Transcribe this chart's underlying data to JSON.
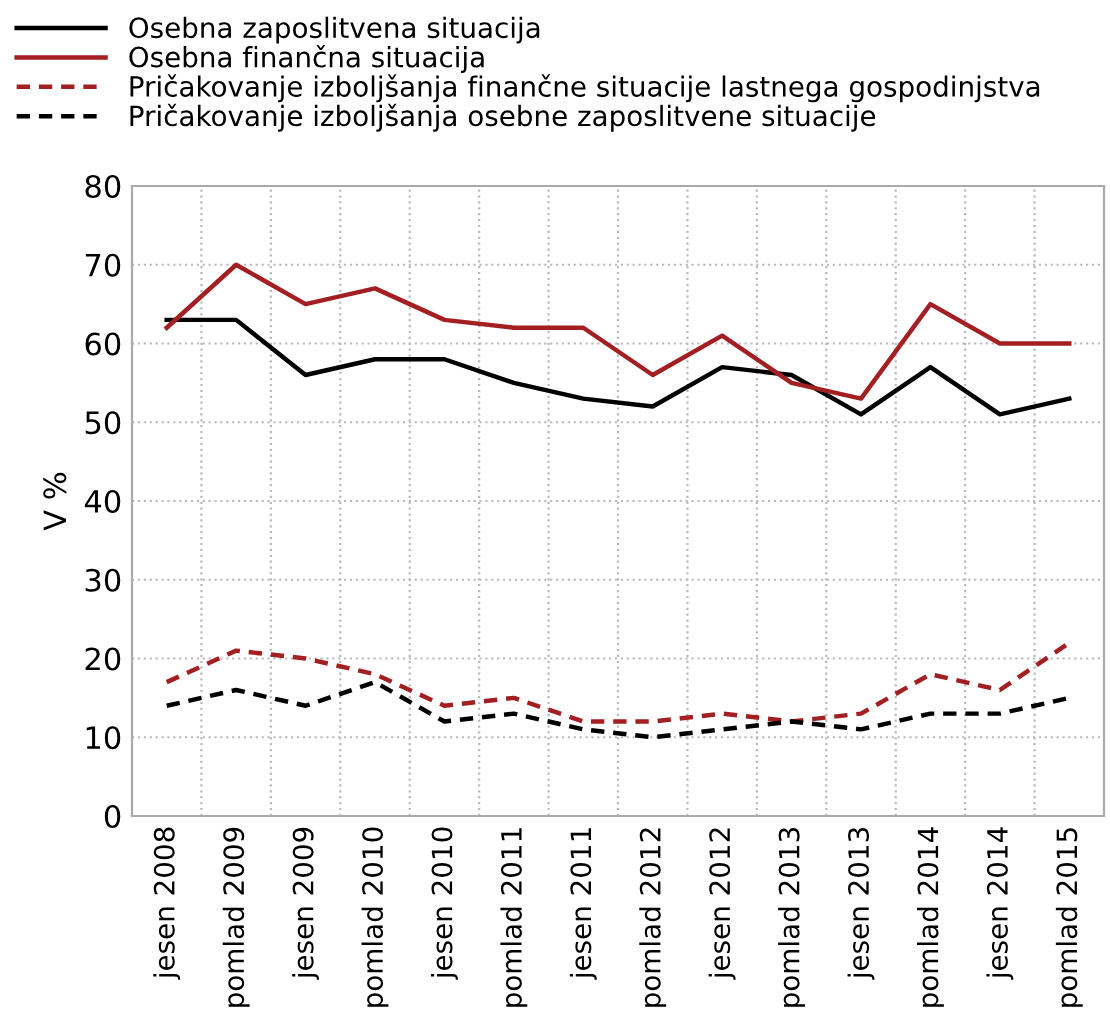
{
  "chart_data": {
    "type": "line",
    "ylabel": "V %",
    "categories": [
      "jesen 2008",
      "pomlad 2009",
      "jesen 2009",
      "pomlad 2010",
      "jesen 2010",
      "pomlad 2011",
      "jesen 2011",
      "pomlad 2012",
      "jesen 2012",
      "pomlad 2013",
      "jesen 2013",
      "pomlad 2014",
      "jesen 2014",
      "pomlad 2015"
    ],
    "series": [
      {
        "name": "Osebna zaposlitvena situacija",
        "color": "#000000",
        "line_style": "solid",
        "values": [
          63,
          63,
          56,
          58,
          58,
          55,
          53,
          52,
          57,
          56,
          51,
          57,
          51,
          53
        ]
      },
      {
        "name": "Osebna finančna situacija",
        "color": "#a31f22",
        "line_style": "solid",
        "values": [
          62,
          70,
          65,
          67,
          63,
          62,
          62,
          56,
          61,
          55,
          53,
          65,
          60,
          60
        ]
      },
      {
        "name": "Pričakovanje izboljšanja finančne situacije lastnega gospodinjstva",
        "color": "#a31f22",
        "line_style": "dashed",
        "values": [
          17,
          21,
          20,
          18,
          14,
          15,
          12,
          12,
          13,
          12,
          13,
          18,
          16,
          22
        ]
      },
      {
        "name": "Pričakovanje izboljšanja osebne zaposlitvene situacije",
        "color": "#000000",
        "line_style": "dashed",
        "values": [
          14,
          16,
          14,
          17,
          12,
          13,
          11,
          10,
          11,
          12,
          11,
          13,
          13,
          15
        ]
      }
    ],
    "ylim": [
      0,
      80
    ],
    "yticks": [
      0,
      10,
      20,
      30,
      40,
      50,
      60,
      70,
      80
    ],
    "grid": true,
    "legend": "top",
    "marker": "none"
  }
}
